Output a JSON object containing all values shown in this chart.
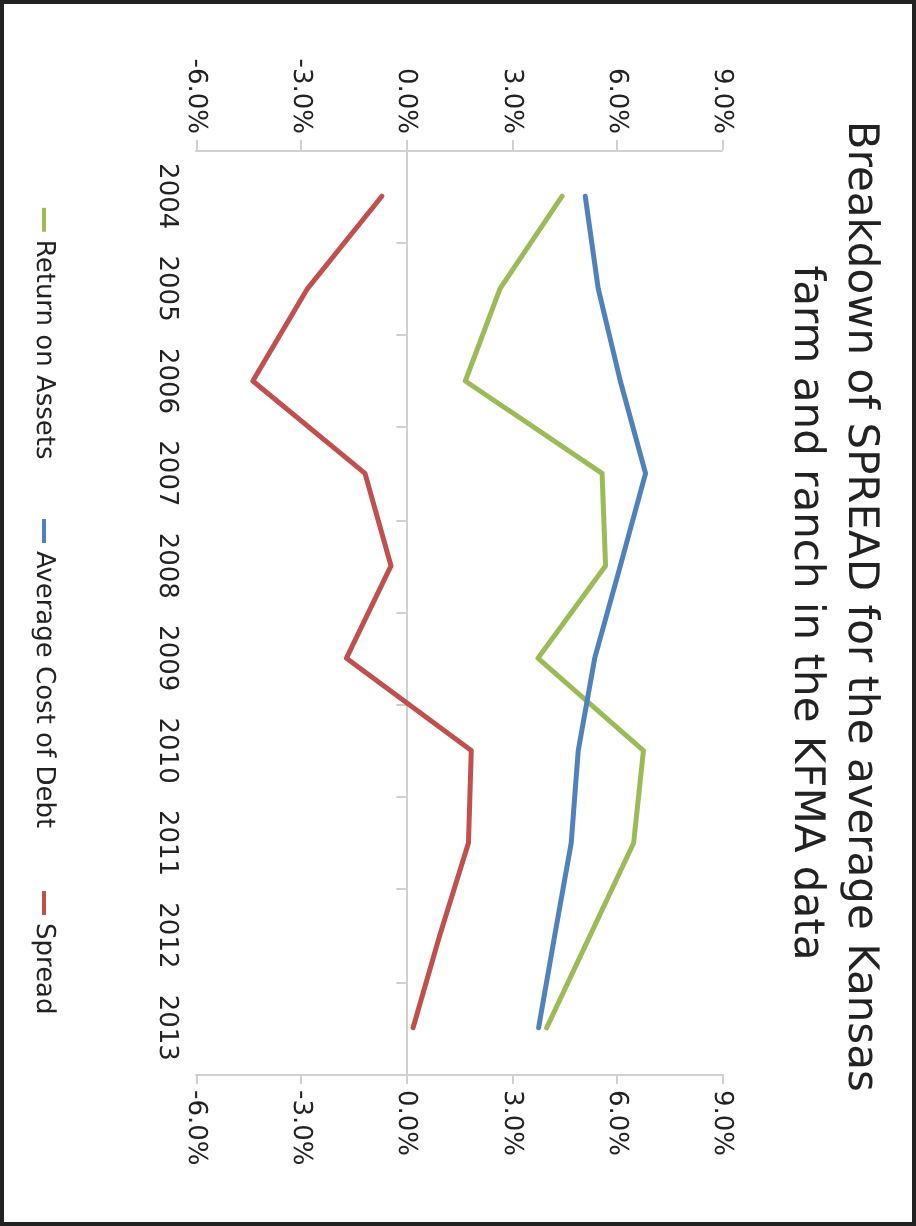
{
  "chart_data": {
    "type": "line",
    "title": "Breakdown of SPREAD for the average Kansas farm and ranch in the KFMA data",
    "orientation": "horizontal",
    "categories": [
      "2004",
      "2005",
      "2006",
      "2007",
      "2008",
      "2009",
      "2010",
      "2011",
      "2012",
      "2013"
    ],
    "series": [
      {
        "name": "Return on Assets",
        "color": "#9bbb59",
        "values": [
          4.44,
          2.67,
          1.68,
          5.58,
          5.68,
          3.75,
          6.76,
          6.48,
          5.24,
          4.0
        ]
      },
      {
        "name": "Average Cost of Debt",
        "color": "#4f81bd",
        "values": [
          5.1,
          5.47,
          6.1,
          6.82,
          6.1,
          5.37,
          4.9,
          4.7,
          4.23,
          3.77
        ]
      },
      {
        "name": "Spread",
        "color": "#c0504d",
        "values": [
          -0.7,
          -2.82,
          -4.38,
          -1.18,
          -0.44,
          -1.71,
          1.85,
          1.77,
          0.95,
          0.19
        ]
      }
    ],
    "xlim": [
      -6,
      9
    ],
    "xticks": [
      {
        "value": -6,
        "label": "-6.0%"
      },
      {
        "value": -3,
        "label": "-3.0%"
      },
      {
        "value": 0,
        "label": "0.0%"
      },
      {
        "value": 3,
        "label": "3.0%"
      },
      {
        "value": 6,
        "label": "6.0%"
      },
      {
        "value": 9,
        "label": "9.0%"
      }
    ],
    "x2lim": [
      -6,
      9
    ],
    "x2ticks": [
      {
        "value": -6,
        "label": "-6.0%"
      },
      {
        "value": -3,
        "label": "-3.0%"
      },
      {
        "value": 0,
        "label": "0.0%"
      },
      {
        "value": 3,
        "label": "3.0%"
      },
      {
        "value": 6,
        "label": "6.0%"
      },
      {
        "value": 9,
        "label": "9.0%"
      }
    ],
    "legend": "left",
    "marker": "none",
    "line_style": "solid"
  }
}
